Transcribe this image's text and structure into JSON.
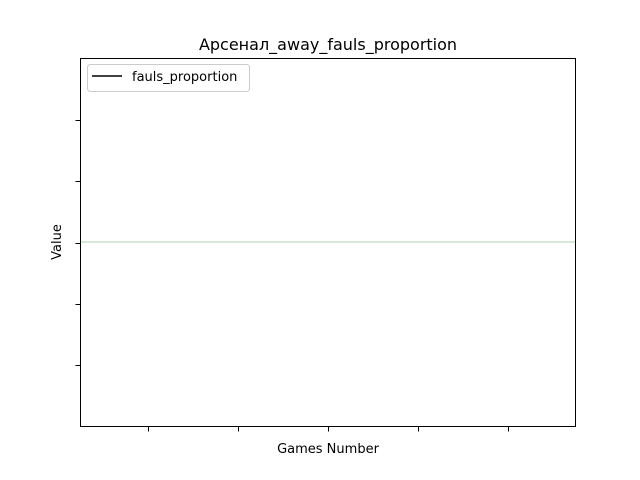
{
  "chart_data": {
    "type": "line",
    "title": "Арсенал_away_fauls_proportion",
    "xlabel": "Games Number",
    "ylabel": "Value",
    "x_tick_labels": [
      "",
      "",
      "",
      "",
      ""
    ],
    "y_tick_labels": [
      "",
      "",
      "",
      "",
      ""
    ],
    "legend": {
      "placement": "top-left",
      "entries": [
        {
          "label": "fauls_proportion",
          "color": "#000000"
        }
      ]
    },
    "reference_line": {
      "position": "middle",
      "color": "#c8e0c8"
    },
    "series": [
      {
        "name": "fauls_proportion",
        "color": "#000000",
        "x": [],
        "y": []
      }
    ],
    "grid": false
  }
}
